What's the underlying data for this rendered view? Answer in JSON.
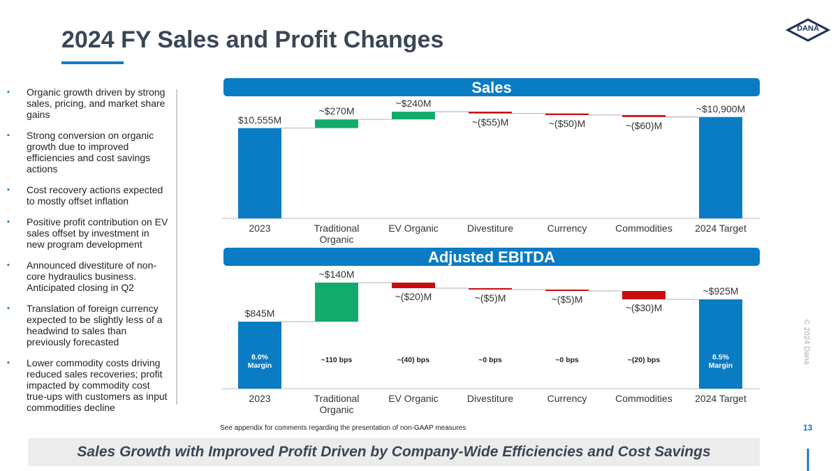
{
  "header": {
    "title": "2024 FY Sales and Profit Changes",
    "logo": "DANA"
  },
  "bullets": [
    "Organic growth driven by strong sales, pricing, and market share gains",
    "Strong conversion on organic growth due to improved efficiencies and cost savings actions",
    "Cost recovery actions expected to mostly offset inflation",
    "Positive profit contribution on EV sales offset by investment in new program development",
    "Announced divestiture of non-core hydraulics business. Anticipated closing in Q2",
    "Translation of foreign currency expected to be slightly less of a headwind to sales than previously forecasted",
    "Lower commodity costs driving reduced sales recoveries; profit impacted by commodity cost true-ups with customers as input commodities decline"
  ],
  "chart_data": [
    {
      "type": "waterfall",
      "title": "Sales",
      "categories": [
        "2023",
        "Traditional Organic",
        "EV Organic",
        "Divestiture",
        "Currency",
        "Commodities",
        "2024 Target"
      ],
      "values": [
        10555,
        270,
        240,
        -55,
        -50,
        -60,
        10900
      ],
      "value_labels": [
        "$10,555M",
        "~$270M",
        "~$240M",
        "~($55)M",
        "~($50)M",
        "~($60)M",
        "~$10,900M"
      ],
      "measure": [
        "absolute",
        "relative",
        "relative",
        "relative",
        "relative",
        "relative",
        "absolute"
      ],
      "colors": {
        "total": "#0a7cc4",
        "increase": "#13ab6b",
        "decrease": "#c90c0f"
      },
      "ylim": [
        7750,
        11500
      ]
    },
    {
      "type": "waterfall",
      "title": "Adjusted EBITDA",
      "categories": [
        "2023",
        "Traditional Organic",
        "EV Organic",
        "Divestiture",
        "Currency",
        "Commodities",
        "2024 Target"
      ],
      "values": [
        845,
        140,
        -20,
        -5,
        -5,
        -30,
        925
      ],
      "value_labels": [
        "$845M",
        "~$140M",
        "~($20)M",
        "~($5)M",
        "~($5)M",
        "~($30)M",
        "~$925M"
      ],
      "measure": [
        "absolute",
        "relative",
        "relative",
        "relative",
        "relative",
        "relative",
        "absolute"
      ],
      "annotations": [
        "8.0%\nMargin",
        "~110 bps",
        "~(40) bps",
        "~0 bps",
        "~0 bps",
        "~(20) bps",
        "8.5%\nMargin"
      ],
      "colors": {
        "total": "#0a7cc4",
        "increase": "#13ab6b",
        "decrease": "#c90c0f"
      },
      "ylim": [
        605,
        1035
      ]
    }
  ],
  "footer": {
    "note": "See appendix for comments regarding the presentation of non-GAAP measures",
    "page": "13",
    "copyright": "© 2024 Dana",
    "banner": "Sales Growth with Improved Profit Driven by Company-Wide Efficiencies and Cost Savings"
  }
}
